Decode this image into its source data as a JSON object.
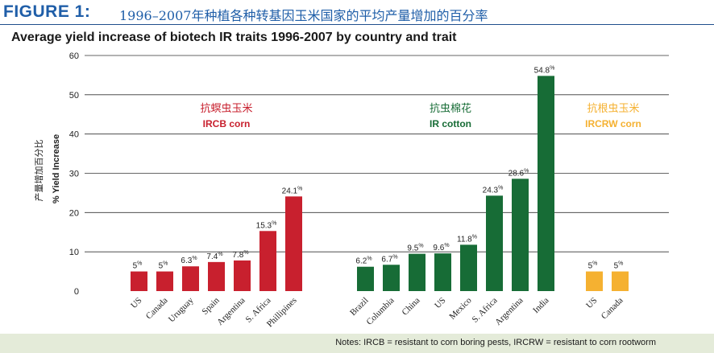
{
  "header": {
    "figure_label": "FIGURE 1:",
    "title_cn": "1996–2007年种植各种转基因玉米国家的平均产量增加的百分率"
  },
  "subtitle": "Average yield increase of biotech IR traits 1996-2007 by country and trait",
  "footer": {
    "notes": "Notes: IRCB = resistant to corn boring pests, IRCRW = resistant to corn rootworm"
  },
  "colors": {
    "ircb": "#c8202e",
    "ir_cotton": "#176c36",
    "ircrw": "#f5b131",
    "header_blue": "#1f5ea8",
    "footer_bg": "#e4ebd9"
  },
  "chart_data": {
    "type": "bar",
    "title": "Average yield increase of biotech IR traits 1996-2007 by country and trait",
    "ylabel": "% Yield Increase",
    "ylabel_cn": "产量增加百分比",
    "ylim": [
      0,
      60
    ],
    "yticks": [
      0,
      10,
      20,
      30,
      40,
      50,
      60
    ],
    "grid": true,
    "groups": [
      {
        "name_cn": "抗螟虫玉米",
        "name": "IRCB corn",
        "color": "#c8202e",
        "categories": [
          "US",
          "Canada",
          "Uruguay",
          "Spain",
          "Argentina",
          "S. Africa",
          "Phillipines"
        ],
        "values": [
          5,
          5,
          6.3,
          7.4,
          7.8,
          15.3,
          24.1
        ],
        "labels": [
          "5%",
          "5%",
          "6.3%",
          "7.4%",
          "7.8%",
          "15.3%",
          "24.1%"
        ]
      },
      {
        "name_cn": "抗虫棉花",
        "name": "IR cotton",
        "color": "#176c36",
        "categories": [
          "Brazil",
          "Columbia",
          "China",
          "US",
          "Mexico",
          "S. Africa",
          "Argentina",
          "India"
        ],
        "values": [
          6.2,
          6.7,
          9.5,
          9.6,
          11.8,
          24.3,
          28.6,
          54.8
        ],
        "labels": [
          "6.2%",
          "6.7%",
          "9.5%",
          "9.6%",
          "11.8%",
          "24.3%",
          "28.6%",
          "54.8%"
        ]
      },
      {
        "name_cn": "抗根虫玉米",
        "name": "IRCRW corn",
        "color": "#f5b131",
        "categories": [
          "US",
          "Canada"
        ],
        "values": [
          5,
          5
        ],
        "labels": [
          "5%",
          "5%"
        ]
      }
    ]
  }
}
